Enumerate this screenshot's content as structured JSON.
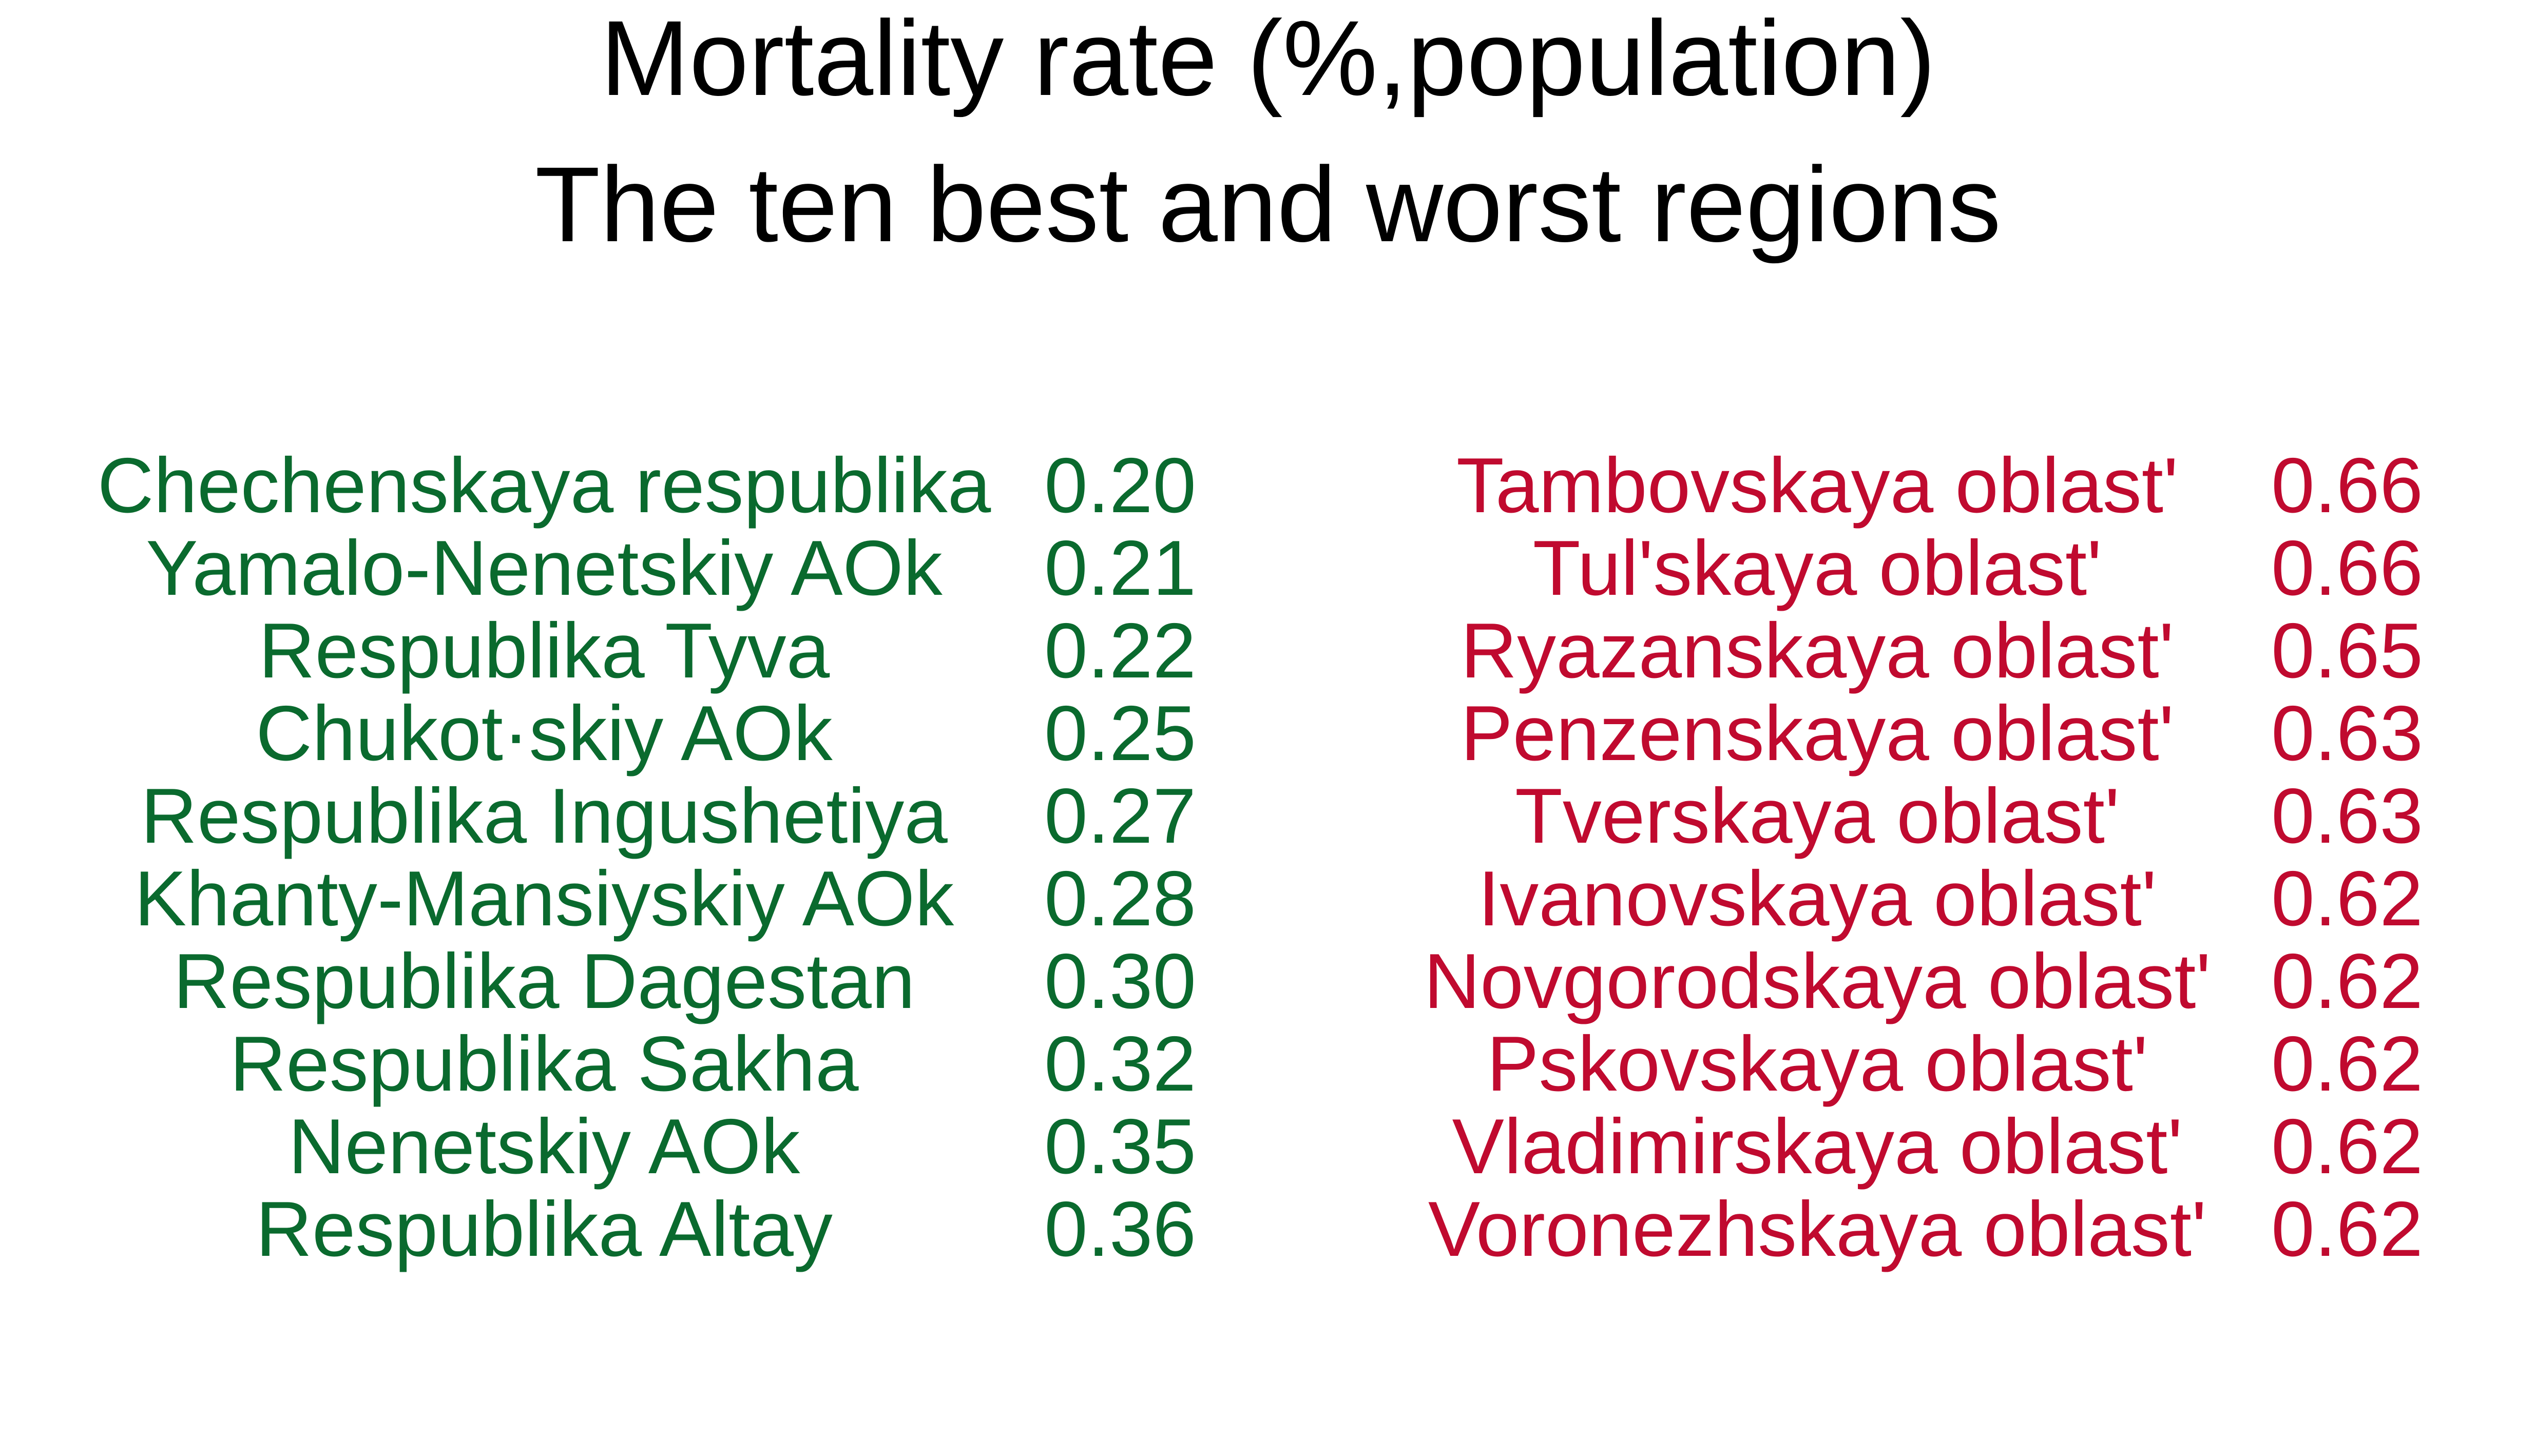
{
  "chart_data": {
    "type": "table",
    "title": "Mortality rate (%,population)",
    "subtitle": "The ten best and worst regions",
    "colors": {
      "best": "#0a6a2e",
      "worst": "#c00a2f",
      "title": "#000000"
    },
    "best": [
      {
        "region": "Chechenskaya respublika",
        "value": "0.20"
      },
      {
        "region": "Yamalo-Nenetskiy AOk",
        "value": "0.21"
      },
      {
        "region": "Respublika Tyva",
        "value": "0.22"
      },
      {
        "region": "Chukot·skiy AOk",
        "value": "0.25"
      },
      {
        "region": "Respublika Ingushetiya",
        "value": "0.27"
      },
      {
        "region": "Khanty-Mansiyskiy AOk",
        "value": "0.28"
      },
      {
        "region": "Respublika Dagestan",
        "value": "0.30"
      },
      {
        "region": "Respublika Sakha",
        "value": "0.32"
      },
      {
        "region": "Nenetskiy AOk",
        "value": "0.35"
      },
      {
        "region": "Respublika Altay",
        "value": "0.36"
      }
    ],
    "worst": [
      {
        "region": "Tambovskaya oblastʹ",
        "value": "0.66"
      },
      {
        "region": "Tulʹskaya oblastʹ",
        "value": "0.66"
      },
      {
        "region": "Ryazanskaya oblastʹ",
        "value": "0.65"
      },
      {
        "region": "Penzenskaya oblastʹ",
        "value": "0.63"
      },
      {
        "region": "Tverskaya oblastʹ",
        "value": "0.63"
      },
      {
        "region": "Ivanovskaya oblastʹ",
        "value": "0.62"
      },
      {
        "region": "Novgorodskaya oblastʹ",
        "value": "0.62"
      },
      {
        "region": "Pskovskaya oblastʹ",
        "value": "0.62"
      },
      {
        "region": "Vladimirskaya oblastʹ",
        "value": "0.62"
      },
      {
        "region": "Voronezhskaya oblastʹ",
        "value": "0.62"
      }
    ]
  }
}
